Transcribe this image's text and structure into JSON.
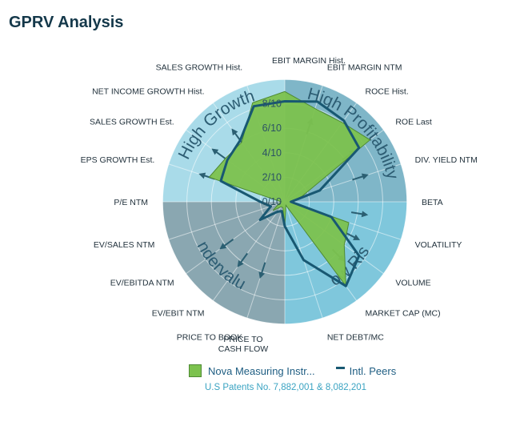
{
  "page": {
    "title": "GPRV Analysis"
  },
  "chart_data": {
    "type": "radar",
    "axes": [
      "EBIT MARGIN Hist.",
      "EBIT MARGIN NTM",
      "ROCE Hist.",
      "ROE  Last",
      "DIV. YIELD NTM",
      "BETA",
      "VOLATILITY",
      "VOLUME",
      "MARKET CAP (MC)",
      "NET DEBT/MC",
      "PRICE TO\nCASH FLOW",
      "PRICE TO BOOK",
      "EV/EBIT NTM",
      "EV/EBITDA NTM",
      "EV/SALES NTM",
      "P/E NTM",
      "EPS GROWTH Est.",
      "SALES GROWTH Est.",
      "NET INCOME GROWTH Hist.",
      "SALES GROWTH Hist."
    ],
    "tick_labels": [
      "0/10",
      "2/10",
      "4/10",
      "6/10",
      "8/10"
    ],
    "ticks": [
      0,
      2,
      4,
      6,
      8
    ],
    "range": [
      0,
      10
    ],
    "quadrants": [
      "High Growth",
      "High Profitability",
      "Low Risk",
      "Undervalued"
    ],
    "series": [
      {
        "name": "Nova Measuring Instr...",
        "values": [
          9,
          8,
          8,
          8.6,
          1.5,
          0.5,
          5.5,
          6,
          8.5,
          0.3,
          2,
          0.5,
          0.5,
          1.2,
          0.5,
          0.3,
          6.5,
          6,
          6,
          8.5
        ]
      },
      {
        "name": "Intl. Peers",
        "values": [
          8.2,
          8.6,
          8.2,
          7.5,
          3,
          0.5,
          4,
          7.5,
          8.5,
          5,
          2,
          0.8,
          1,
          2.5,
          1.2,
          2,
          5.5,
          5.8,
          6.2,
          8.2
        ]
      }
    ],
    "colors": {
      "high_growth": "#a9dbe9",
      "high_profitability": "#7fb6c8",
      "low_risk": "#7fc7dc",
      "undervalued": "#8aa7b1",
      "series_fill": "#7cc24e",
      "peers_line": "#185872"
    },
    "icons": [
      "trend-up-arrow-icon",
      "trend-down-arrow-icon"
    ]
  },
  "legend": {
    "series_a": "Nova Measuring Instr...",
    "series_b": "Intl. Peers"
  },
  "footer": {
    "patent": "U.S Patents No. 7,882,001 & 8,082,201"
  }
}
